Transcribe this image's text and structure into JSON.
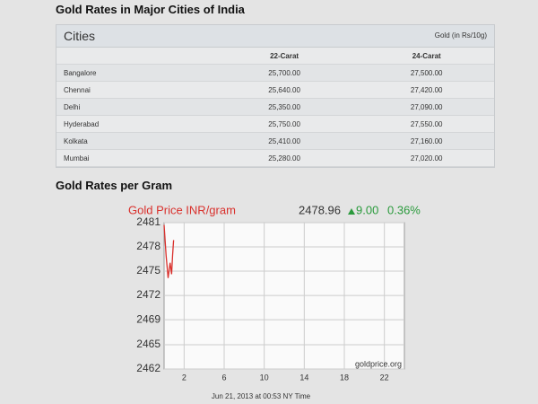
{
  "header": {
    "title": "Gold Rates in Major Cities of India"
  },
  "table": {
    "title": "Cities",
    "note": "Gold (in Rs/10g)",
    "columns": [
      "22-Carat",
      "24-Carat"
    ],
    "rows": [
      [
        "Bangalore",
        "25,700.00",
        "27,500.00"
      ],
      [
        "Chennai",
        "25,640.00",
        "27,420.00"
      ],
      [
        "Delhi",
        "25,350.00",
        "27,090.00"
      ],
      [
        "Hyderabad",
        "25,750.00",
        "27,550.00"
      ],
      [
        "Kolkata",
        "25,410.00",
        "27,160.00"
      ],
      [
        "Mumbai",
        "25,280.00",
        "27,020.00"
      ]
    ]
  },
  "section_title": "Gold Rates per Gram",
  "chart_data": {
    "type": "line",
    "title": "Gold Price INR/gram",
    "price": "2478.96",
    "change": "9.00",
    "change_pct": "0.36%",
    "x": [
      0,
      0.1,
      0.2,
      0.3,
      0.4,
      0.5,
      0.6,
      0.75,
      0.85,
      0.95
    ],
    "series": [
      {
        "name": "Gold Price INR/gram",
        "color": "#d9302c",
        "values": [
          2481,
          2479,
          2477,
          2475.5,
          2474,
          2475,
          2476,
          2474.5,
          2477,
          2479
        ]
      }
    ],
    "xlim": [
      0,
      24
    ],
    "xticks": [
      2,
      6,
      10,
      14,
      18,
      22
    ],
    "ylim": [
      2462,
      2481.3
    ],
    "yticks": [
      {
        "value": 2462,
        "label": "2462"
      },
      {
        "value": 2465.2,
        "label": "2465"
      },
      {
        "value": 2468.5,
        "label": "2469"
      },
      {
        "value": 2471.7,
        "label": "2472"
      },
      {
        "value": 2474.9,
        "label": "2475"
      },
      {
        "value": 2478.1,
        "label": "2478"
      },
      {
        "value": 2481.3,
        "label": "2481"
      }
    ],
    "grid": true,
    "source": "goldprice.org",
    "footer": "Jun 21, 2013 at 00:53 NY Time"
  }
}
